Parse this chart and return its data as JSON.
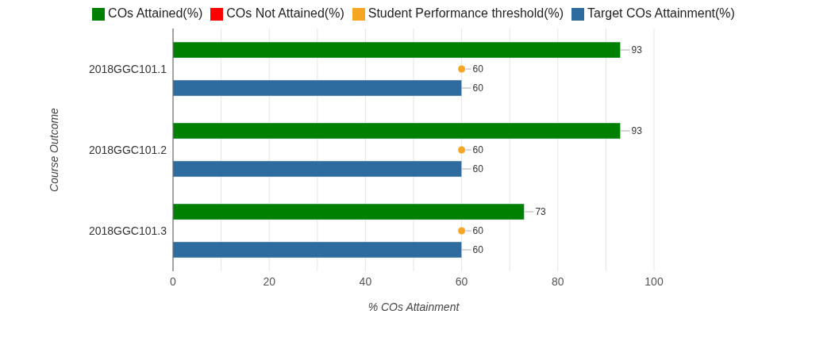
{
  "chart_data": {
    "type": "bar",
    "orientation": "horizontal",
    "xlabel": "% COs Attainment",
    "ylabel": "Course Outcome",
    "categories": [
      "2018GGC101.1",
      "2018GGC101.2",
      "2018GGC101.3"
    ],
    "series": [
      {
        "name": "COs Attained(%)",
        "color": "#008000",
        "values": [
          93,
          93,
          73
        ]
      },
      {
        "name": "COs Not Attained(%)",
        "color": "#ff0000",
        "values": [
          null,
          null,
          null
        ]
      },
      {
        "name": "Student Performance threshold(%)",
        "type": "scatter",
        "color": "#f5a623",
        "values": [
          60,
          60,
          60
        ]
      },
      {
        "name": "Target COs Attainment(%)",
        "color": "#2e6b9e",
        "values": [
          60,
          60,
          60
        ]
      }
    ],
    "xlim": [
      0,
      100
    ],
    "xticks": [
      0,
      {
        "value": 10,
        "label": null
      },
      20,
      {
        "value": 30,
        "label": null
      },
      40,
      {
        "value": 50,
        "label": null
      },
      60,
      {
        "value": 70,
        "label": null
      },
      80,
      {
        "value": 90,
        "label": null
      },
      100
    ],
    "grid": "x",
    "legend": "top",
    "data_labels": true
  }
}
